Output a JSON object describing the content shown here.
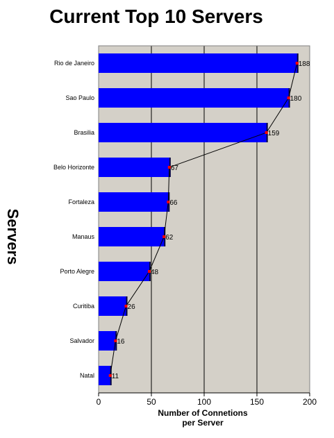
{
  "chart_data": {
    "type": "bar",
    "orientation": "horizontal",
    "title": "Current Top 10 Servers",
    "xlabel_lines": [
      "Number of Connetions",
      "per Server"
    ],
    "ylabel": "Servers",
    "categories": [
      "Rio de Janeiro",
      "Sao Paulo",
      "Brasilia",
      "Belo Horizonte",
      "Fortaleza",
      "Manaus",
      "Porto Alegre",
      "Curitiba",
      "Salvador",
      "Natal"
    ],
    "values": [
      188,
      180,
      159,
      67,
      66,
      62,
      48,
      26,
      16,
      11
    ],
    "overlay": "line connecting bar ends with red point markers",
    "xlim": [
      0,
      200
    ],
    "xticks": [
      0,
      50,
      100,
      150,
      200
    ],
    "grid": "vertical",
    "legend": "none",
    "colors": {
      "bar": "#0000ff",
      "plot_background": "#d4d0c8",
      "marker": "#ff0000",
      "line": "#000000",
      "grid": "#000000"
    }
  }
}
